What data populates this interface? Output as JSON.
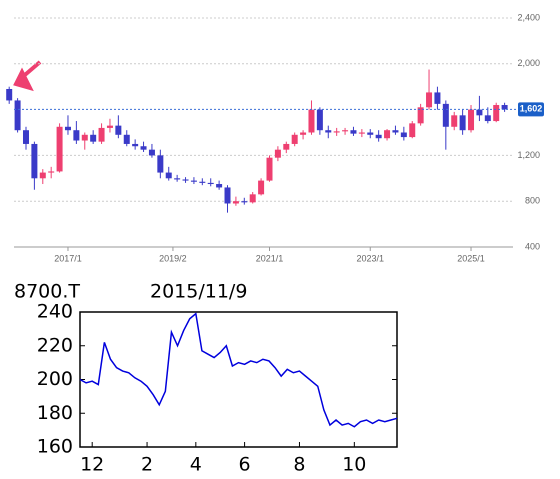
{
  "chart_data": [
    {
      "type": "candlestick",
      "xlim": [
        "2015/10",
        "2025/11"
      ],
      "xticks": [
        "2017/1",
        "2019/2",
        "2021/1",
        "2023/1",
        "2025/1"
      ],
      "ylim": [
        400,
        2400
      ],
      "yticks": [
        400,
        800,
        {
          "value": 1200,
          "label": "1,200"
        },
        {
          "value": 2000,
          "label": "2,000"
        },
        {
          "value": 2400,
          "label": "2,400"
        }
      ],
      "grid": true,
      "up_color": "#ee3f70",
      "down_color": "#3a3ac8",
      "current": {
        "value": 1602,
        "label": "1,602"
      },
      "x": [
        "2015/11",
        "2016/1",
        "2016/3",
        "2016/5",
        "2016/7",
        "2016/9",
        "2016/11",
        "2017/1",
        "2017/3",
        "2017/5",
        "2017/7",
        "2017/9",
        "2017/11",
        "2018/1",
        "2018/3",
        "2018/5",
        "2018/7",
        "2018/9",
        "2018/11",
        "2019/1",
        "2019/3",
        "2019/5",
        "2019/7",
        "2019/9",
        "2019/11",
        "2020/1",
        "2020/3",
        "2020/5",
        "2020/7",
        "2020/9",
        "2020/11",
        "2021/1",
        "2021/3",
        "2021/5",
        "2021/7",
        "2021/9",
        "2021/11",
        "2022/1",
        "2022/3",
        "2022/5",
        "2022/7",
        "2022/9",
        "2022/11",
        "2023/1",
        "2023/3",
        "2023/5",
        "2023/7",
        "2023/9",
        "2023/11",
        "2024/1",
        "2024/3",
        "2024/5",
        "2024/7",
        "2024/9",
        "2024/11",
        "2025/1",
        "2025/3",
        "2025/5",
        "2025/7",
        "2025/9"
      ],
      "open": [
        1780,
        1680,
        1420,
        1300,
        1000,
        1050,
        1060,
        1450,
        1420,
        1330,
        1380,
        1320,
        1440,
        1460,
        1380,
        1300,
        1280,
        1250,
        1200,
        1050,
        1000,
        990,
        980,
        970,
        960,
        950,
        920,
        780,
        800,
        790,
        860,
        980,
        1180,
        1250,
        1300,
        1380,
        1400,
        1600,
        1420,
        1400,
        1410,
        1420,
        1390,
        1400,
        1380,
        1350,
        1420,
        1400,
        1360,
        1480,
        1620,
        1750,
        1650,
        1450,
        1550,
        1420,
        1600,
        1550,
        1500,
        1640
      ],
      "high": [
        1800,
        1700,
        1450,
        1320,
        1080,
        1100,
        1480,
        1550,
        1500,
        1400,
        1420,
        1480,
        1520,
        1550,
        1420,
        1340,
        1320,
        1300,
        1250,
        1100,
        1030,
        1010,
        1010,
        1000,
        1000,
        980,
        940,
        840,
        830,
        880,
        1000,
        1200,
        1280,
        1320,
        1400,
        1420,
        1680,
        1620,
        1460,
        1440,
        1440,
        1450,
        1430,
        1430,
        1420,
        1430,
        1460,
        1450,
        1500,
        1650,
        1950,
        1800,
        1680,
        1580,
        1600,
        1640,
        1720,
        1620,
        1660,
        1660
      ],
      "low": [
        1650,
        1400,
        1250,
        900,
        950,
        1000,
        1050,
        1380,
        1300,
        1250,
        1300,
        1300,
        1400,
        1350,
        1280,
        1250,
        1230,
        1180,
        1000,
        980,
        970,
        960,
        950,
        940,
        930,
        900,
        700,
        760,
        770,
        780,
        850,
        970,
        1150,
        1220,
        1280,
        1340,
        1380,
        1380,
        1350,
        1370,
        1380,
        1370,
        1360,
        1350,
        1320,
        1330,
        1380,
        1330,
        1350,
        1460,
        1600,
        1600,
        1250,
        1420,
        1380,
        1400,
        1500,
        1480,
        1490,
        1580
      ],
      "close": [
        1680,
        1420,
        1300,
        1000,
        1050,
        1060,
        1450,
        1420,
        1330,
        1380,
        1320,
        1440,
        1460,
        1380,
        1300,
        1280,
        1250,
        1200,
        1050,
        1000,
        990,
        980,
        970,
        960,
        950,
        920,
        780,
        800,
        790,
        860,
        980,
        1180,
        1250,
        1300,
        1380,
        1400,
        1600,
        1420,
        1400,
        1410,
        1420,
        1390,
        1400,
        1380,
        1350,
        1420,
        1400,
        1360,
        1480,
        1620,
        1750,
        1650,
        1450,
        1550,
        1420,
        1600,
        1550,
        1500,
        1640,
        1602
      ]
    },
    {
      "type": "line",
      "title": "8700.T",
      "subtitle": "2015/11/9",
      "categories": [
        null,
        null,
        "12",
        null,
        null,
        null,
        null,
        null,
        null,
        null,
        null,
        "2",
        null,
        null,
        null,
        null,
        null,
        null,
        null,
        "4",
        null,
        null,
        null,
        null,
        null,
        null,
        null,
        "6",
        null,
        null,
        null,
        null,
        null,
        null,
        null,
        null,
        "8",
        null,
        null,
        null,
        null,
        null,
        null,
        null,
        null,
        "10",
        null,
        null,
        null,
        null,
        null,
        null,
        null
      ],
      "values": [
        200,
        198,
        199,
        197,
        222,
        212,
        207,
        205,
        204,
        201,
        199,
        196,
        191,
        185,
        193,
        228,
        220,
        229,
        236,
        239,
        217,
        215,
        213,
        216,
        220,
        208,
        210,
        209,
        211,
        210,
        212,
        211,
        207,
        202,
        206,
        204,
        205,
        202,
        199,
        196,
        182,
        173,
        176,
        173,
        174,
        172,
        175,
        176,
        174,
        176,
        175,
        176,
        177
      ],
      "color": "#0000dd",
      "ylim": [
        160,
        240
      ],
      "yticks": [
        160,
        180,
        200,
        220,
        240
      ]
    }
  ]
}
